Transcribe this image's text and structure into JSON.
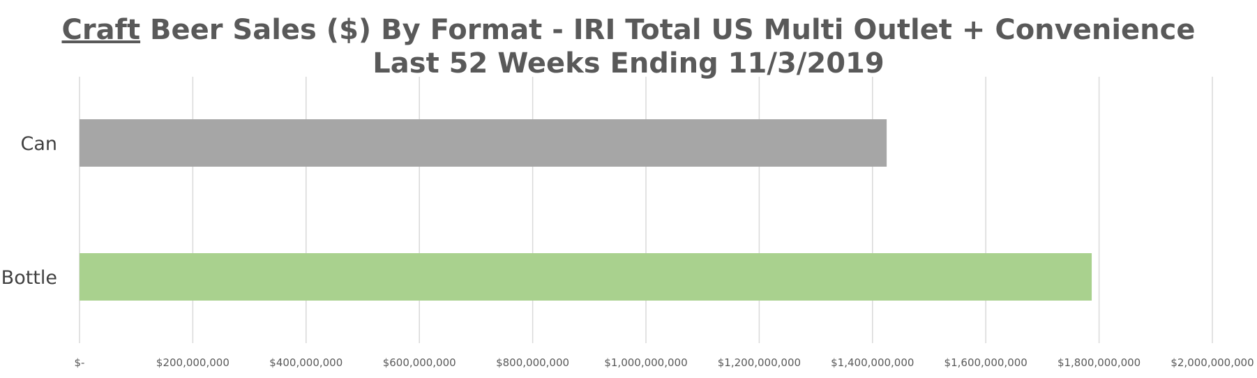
{
  "chart_data": {
    "type": "bar",
    "orientation": "horizontal",
    "title": {
      "underlined": "Craft",
      "line1_rest": " Beer Sales ($) By Format - IRI Total US Multi Outlet + Convenience",
      "line2": "Last 52 Weeks Ending 11/3/2019"
    },
    "categories": [
      "Can",
      "Bottle"
    ],
    "values": [
      1425000000,
      1787000000
    ],
    "colors": [
      "#a6a6a6",
      "#a9d18e"
    ],
    "xlim": [
      0,
      2000000000
    ],
    "x_ticks": [
      0,
      200000000,
      400000000,
      600000000,
      800000000,
      1000000000,
      1200000000,
      1400000000,
      1600000000,
      1800000000,
      2000000000
    ],
    "x_tick_labels": [
      "$-",
      "$200,000,000",
      "$400,000,000",
      "$600,000,000",
      "$800,000,000",
      "$1,000,000,000",
      "$1,200,000,000",
      "$1,400,000,000",
      "$1,600,000,000",
      "$1,800,000,000",
      "$2,000,000,000"
    ],
    "grid": true,
    "legend": "none",
    "gridline_color": "#d9d9d9",
    "text_color": "#595959"
  }
}
